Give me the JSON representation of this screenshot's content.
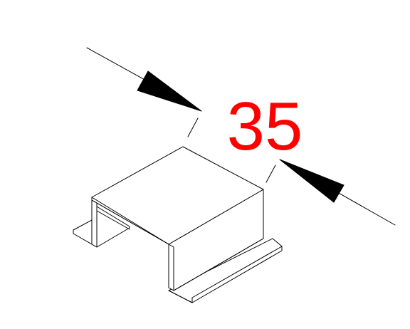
{
  "dimension": {
    "value": "35",
    "color": "#ff0000"
  },
  "drawing": {
    "line_color": "#000000",
    "background": "#ffffff",
    "part": "hat-channel-bracket"
  }
}
